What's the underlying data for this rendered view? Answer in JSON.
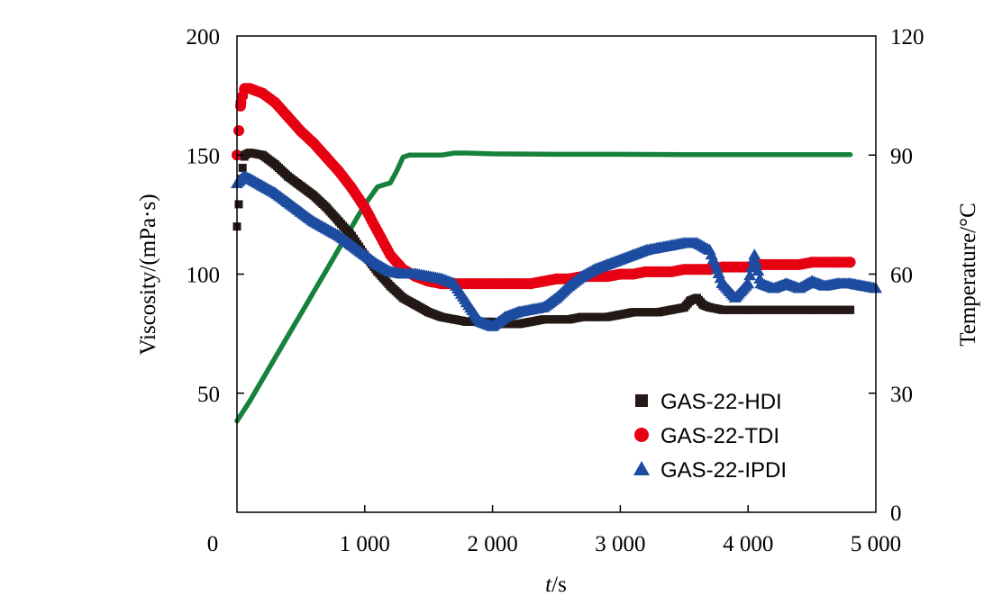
{
  "chart_data": {
    "type": "line",
    "title": "",
    "xlabel": {
      "italic": "t",
      "rest": "/s"
    },
    "ylabel": "Viscosity/(mPa·s)",
    "y2label": "Temperature/°C",
    "xlim": [
      0,
      5000
    ],
    "ylim": [
      0,
      200
    ],
    "y2lim": [
      0,
      120
    ],
    "xticks": [
      0,
      1000,
      2000,
      3000,
      4000,
      5000
    ],
    "xtick_labels": [
      "0",
      "1 000",
      "2 000",
      "3 000",
      "4 000",
      "5 000"
    ],
    "yticks": [
      50,
      100,
      150,
      200
    ],
    "ytick_labels": [
      "50",
      "100",
      "150",
      "200"
    ],
    "y2ticks": [
      0,
      30,
      60,
      90,
      120
    ],
    "y2tick_labels": [
      "0",
      "30",
      "60",
      "90",
      "120"
    ],
    "grid": false,
    "legend_position": "bottom-right",
    "series": [
      {
        "name": "GAS-22-HDI",
        "axis": "left",
        "marker": "square",
        "color": "#231815",
        "x": [
          0,
          30,
          60,
          100,
          200,
          300,
          400,
          500,
          600,
          700,
          800,
          900,
          1000,
          1100,
          1200,
          1300,
          1400,
          1500,
          1600,
          1700,
          1800,
          1900,
          2000,
          2100,
          2200,
          2300,
          2400,
          2500,
          2600,
          2700,
          2800,
          2900,
          3000,
          3100,
          3200,
          3300,
          3400,
          3500,
          3550,
          3600,
          3650,
          3700,
          3800,
          3900,
          4000,
          4100,
          4200,
          4300,
          4400,
          4500,
          4600,
          4700,
          4800
        ],
        "values": [
          120,
          140,
          150,
          151,
          150,
          146,
          141,
          137,
          133,
          128,
          122,
          116,
          108,
          101,
          95,
          90,
          87,
          84,
          82,
          81,
          80,
          80,
          80,
          79,
          79,
          80,
          81,
          81,
          81,
          82,
          82,
          82,
          83,
          84,
          84,
          84,
          85,
          86,
          89,
          90,
          87,
          86,
          85,
          85,
          85,
          85,
          85,
          85,
          85,
          85,
          85,
          85,
          85
        ]
      },
      {
        "name": "GAS-22-TDI",
        "axis": "left",
        "marker": "circle",
        "color": "#e60012",
        "x": [
          0,
          30,
          60,
          100,
          200,
          300,
          400,
          500,
          600,
          700,
          800,
          900,
          1000,
          1100,
          1200,
          1300,
          1400,
          1500,
          1600,
          1700,
          1800,
          1900,
          2000,
          2100,
          2200,
          2300,
          2400,
          2500,
          2600,
          2700,
          2800,
          2900,
          3000,
          3100,
          3200,
          3300,
          3400,
          3500,
          3600,
          3700,
          3800,
          3900,
          4000,
          4100,
          4200,
          4300,
          4400,
          4500,
          4600,
          4700,
          4800
        ],
        "values": [
          150,
          172,
          178,
          178,
          176,
          172,
          166,
          160,
          155,
          149,
          143,
          136,
          128,
          118,
          108,
          102,
          99,
          97,
          96,
          96,
          96,
          96,
          96,
          96,
          96,
          96,
          97,
          98,
          98,
          99,
          99,
          99,
          100,
          100,
          101,
          101,
          101,
          102,
          102,
          102,
          103,
          103,
          103,
          104,
          104,
          104,
          104,
          105,
          105,
          105,
          105
        ]
      },
      {
        "name": "GAS-22-IPDI",
        "axis": "left",
        "marker": "triangle",
        "color": "#1d4ca0",
        "x": [
          0,
          50,
          100,
          200,
          300,
          400,
          500,
          600,
          700,
          800,
          900,
          1000,
          1100,
          1200,
          1300,
          1400,
          1500,
          1600,
          1700,
          1800,
          1900,
          2000,
          2050,
          2100,
          2200,
          2300,
          2400,
          2500,
          2600,
          2700,
          2800,
          2900,
          3000,
          3100,
          3200,
          3300,
          3400,
          3500,
          3600,
          3700,
          3800,
          3900,
          4000,
          4050,
          4100,
          4200,
          4300,
          4400,
          4500,
          4600,
          4700,
          4800,
          4900,
          5000
        ],
        "values": [
          138,
          141,
          140,
          137,
          134,
          130,
          126,
          122,
          119,
          116,
          112,
          108,
          104,
          101,
          100,
          100,
          99,
          98,
          96,
          88,
          80,
          78,
          80,
          82,
          84,
          85,
          86,
          90,
          95,
          99,
          102,
          104,
          106,
          108,
          110,
          111,
          112,
          113,
          113,
          110,
          96,
          90,
          96,
          108,
          96,
          94,
          96,
          94,
          97,
          95,
          96,
          96,
          95,
          94
        ]
      },
      {
        "name": "Temperature",
        "axis": "right",
        "marker": "line",
        "color": "#16813b",
        "x": [
          0,
          100,
          200,
          300,
          400,
          500,
          600,
          700,
          800,
          900,
          1000,
          1100,
          1200,
          1250,
          1300,
          1350,
          1400,
          1500,
          1600,
          1700,
          1800,
          2000,
          2500,
          3000,
          3500,
          4000,
          4500,
          4800
        ],
        "values": [
          23,
          28,
          33.5,
          39,
          44.5,
          50,
          55.5,
          61,
          66.5,
          72,
          77.5,
          82,
          83,
          86,
          89.5,
          90,
          90,
          90,
          90,
          90.5,
          90.5,
          90.3,
          90.2,
          90.2,
          90.1,
          90.1,
          90.1,
          90.1
        ]
      }
    ]
  }
}
